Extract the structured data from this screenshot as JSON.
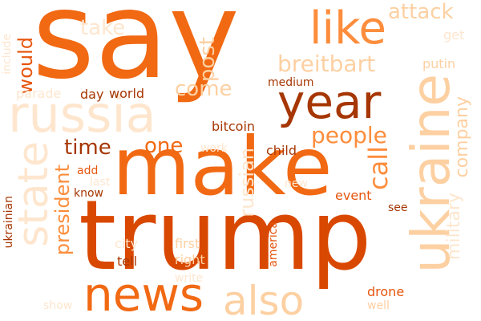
{
  "words": {
    "say": "say",
    "make": "make",
    "trump": "trump",
    "ukraine": "ukraine",
    "russia": "russia",
    "year": "year",
    "like": "like",
    "state": "state",
    "news": "news",
    "also": "also",
    "people": "people",
    "attack": "attack",
    "breitbart": "breitbart",
    "would": "would",
    "take": "take",
    "post": "post",
    "come": "come",
    "one": "one",
    "time": "time",
    "president": "president",
    "call": "call",
    "russian": "russian",
    "company": "company",
    "military": "military",
    "get": "get",
    "putin": "putin",
    "medium": "medium",
    "world": "world",
    "day": "day",
    "parade": "parade",
    "include": "include",
    "bitcoin": "bitcoin",
    "child": "child",
    "work": "work",
    "add": "add",
    "last": "last",
    "know": "know",
    "new": "new",
    "event": "event",
    "see": "see",
    "ukrainian": "ukrainian",
    "city": "city",
    "first": "first",
    "right": "right",
    "tell": "tell",
    "america": "america",
    "write": "write",
    "drone": "drone",
    "well": "well",
    "show": "show"
  },
  "colors": {
    "darkest": "#a63603",
    "dark": "#d94801",
    "mid_dark": "#e6550d",
    "mid": "#f16913",
    "orange": "#fd8d3c",
    "light_orange": "#fdae6b",
    "light": "#fdd0a2",
    "lightest": "#fee6ce"
  }
}
